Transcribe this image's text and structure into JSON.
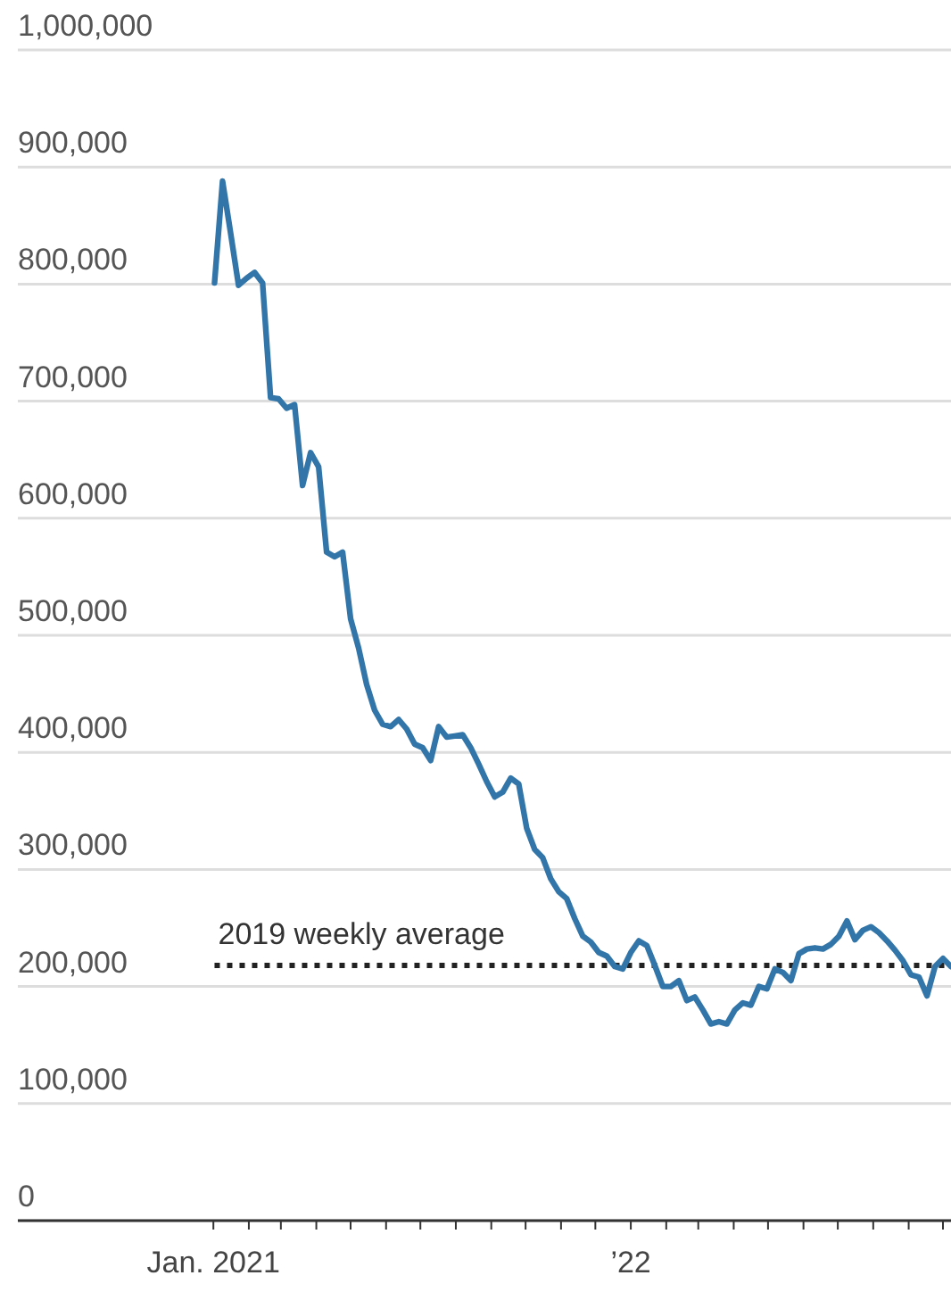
{
  "chart_data": {
    "type": "line",
    "x": [
      "2021-01-02",
      "2021-01-09",
      "2021-01-16",
      "2021-01-23",
      "2021-01-30",
      "2021-02-06",
      "2021-02-13",
      "2021-02-20",
      "2021-02-27",
      "2021-03-06",
      "2021-03-13",
      "2021-03-20",
      "2021-03-27",
      "2021-04-03",
      "2021-04-10",
      "2021-04-17",
      "2021-04-24",
      "2021-05-01",
      "2021-05-08",
      "2021-05-15",
      "2021-05-22",
      "2021-05-29",
      "2021-06-05",
      "2021-06-12",
      "2021-06-19",
      "2021-06-26",
      "2021-07-03",
      "2021-07-10",
      "2021-07-17",
      "2021-07-24",
      "2021-07-31",
      "2021-08-07",
      "2021-08-14",
      "2021-08-21",
      "2021-08-28",
      "2021-09-04",
      "2021-09-11",
      "2021-09-18",
      "2021-09-25",
      "2021-10-02",
      "2021-10-09",
      "2021-10-16",
      "2021-10-23",
      "2021-10-30",
      "2021-11-06",
      "2021-11-13",
      "2021-11-20",
      "2021-11-27",
      "2021-12-04",
      "2021-12-11",
      "2021-12-18",
      "2021-12-25",
      "2022-01-01",
      "2022-01-08",
      "2022-01-15",
      "2022-01-22",
      "2022-01-29",
      "2022-02-05",
      "2022-02-12",
      "2022-02-19",
      "2022-02-26",
      "2022-03-05",
      "2022-03-12",
      "2022-03-19",
      "2022-03-26",
      "2022-04-02",
      "2022-04-09",
      "2022-04-16",
      "2022-04-23",
      "2022-04-30",
      "2022-05-07",
      "2022-05-14",
      "2022-05-21",
      "2022-05-28",
      "2022-06-04",
      "2022-06-11",
      "2022-06-18",
      "2022-06-25",
      "2022-07-02",
      "2022-07-09",
      "2022-07-16",
      "2022-07-23",
      "2022-07-30",
      "2022-08-06",
      "2022-08-13",
      "2022-08-20",
      "2022-08-27",
      "2022-09-03",
      "2022-09-10",
      "2022-09-17",
      "2022-09-24",
      "2022-10-01",
      "2022-10-08"
    ],
    "series": [
      {
        "color": "#3276a9",
        "values": [
          801000,
          888000,
          844000,
          799000,
          805000,
          810000,
          801000,
          703000,
          702000,
          694000,
          697000,
          628000,
          656000,
          644000,
          571000,
          567000,
          571000,
          514000,
          489000,
          458000,
          436000,
          424000,
          422000,
          428000,
          420000,
          407000,
          404000,
          393000,
          422000,
          413000,
          414000,
          415000,
          404000,
          390000,
          375000,
          362000,
          366000,
          378000,
          373000,
          335000,
          317000,
          310000,
          292000,
          281000,
          275000,
          258000,
          243000,
          238000,
          229000,
          226000,
          217000,
          215000,
          229000,
          239000,
          235000,
          218000,
          200000,
          200000,
          205000,
          188000,
          191000,
          180000,
          168000,
          170000,
          168000,
          180000,
          186000,
          184000,
          200000,
          198000,
          215000,
          212000,
          205000,
          228000,
          232000,
          233000,
          232000,
          236000,
          243000,
          256000,
          240000,
          248000,
          251000,
          246000,
          239000,
          231000,
          222000,
          210000,
          208000,
          192000,
          217000,
          224000,
          217000
        ]
      }
    ],
    "xlim": [
      "2020-07-14",
      "2022-10-08"
    ],
    "xticks": [
      {
        "value": "2021-01-01",
        "label": "Jan. 2021"
      },
      {
        "value": "2021-02-01",
        "label": null
      },
      {
        "value": "2021-03-01",
        "label": null
      },
      {
        "value": "2021-04-01",
        "label": null
      },
      {
        "value": "2021-05-01",
        "label": null
      },
      {
        "value": "2021-06-01",
        "label": null
      },
      {
        "value": "2021-07-01",
        "label": null
      },
      {
        "value": "2021-08-01",
        "label": null
      },
      {
        "value": "2021-09-01",
        "label": null
      },
      {
        "value": "2021-10-01",
        "label": null
      },
      {
        "value": "2021-11-01",
        "label": null
      },
      {
        "value": "2021-12-01",
        "label": null
      },
      {
        "value": "2022-01-01",
        "label": "’22"
      },
      {
        "value": "2022-02-01",
        "label": null
      },
      {
        "value": "2022-03-01",
        "label": null
      },
      {
        "value": "2022-04-01",
        "label": null
      },
      {
        "value": "2022-05-01",
        "label": null
      },
      {
        "value": "2022-06-01",
        "label": null
      },
      {
        "value": "2022-07-01",
        "label": null
      },
      {
        "value": "2022-08-01",
        "label": null
      },
      {
        "value": "2022-09-01",
        "label": null
      },
      {
        "value": "2022-10-01",
        "label": null
      }
    ],
    "ylim": [
      0,
      1000000
    ],
    "yticks": [
      {
        "value": 0,
        "label": "0"
      },
      {
        "value": 100000,
        "label": "100,000"
      },
      {
        "value": 200000,
        "label": "200,000"
      },
      {
        "value": 300000,
        "label": "300,000"
      },
      {
        "value": 400000,
        "label": "400,000"
      },
      {
        "value": 500000,
        "label": "500,000"
      },
      {
        "value": 600000,
        "label": "600,000"
      },
      {
        "value": 700000,
        "label": "700,000"
      },
      {
        "value": 800000,
        "label": "800,000"
      },
      {
        "value": 900000,
        "label": "900,000"
      },
      {
        "value": 1000000,
        "label": "1,000,000"
      }
    ],
    "grid": "y",
    "marker": "none",
    "line_style": "solid",
    "ref_lines": [
      {
        "axis": "y",
        "value": 218000,
        "label": "2019 weekly average",
        "color": "#222222",
        "line_style": "dotted"
      }
    ]
  }
}
